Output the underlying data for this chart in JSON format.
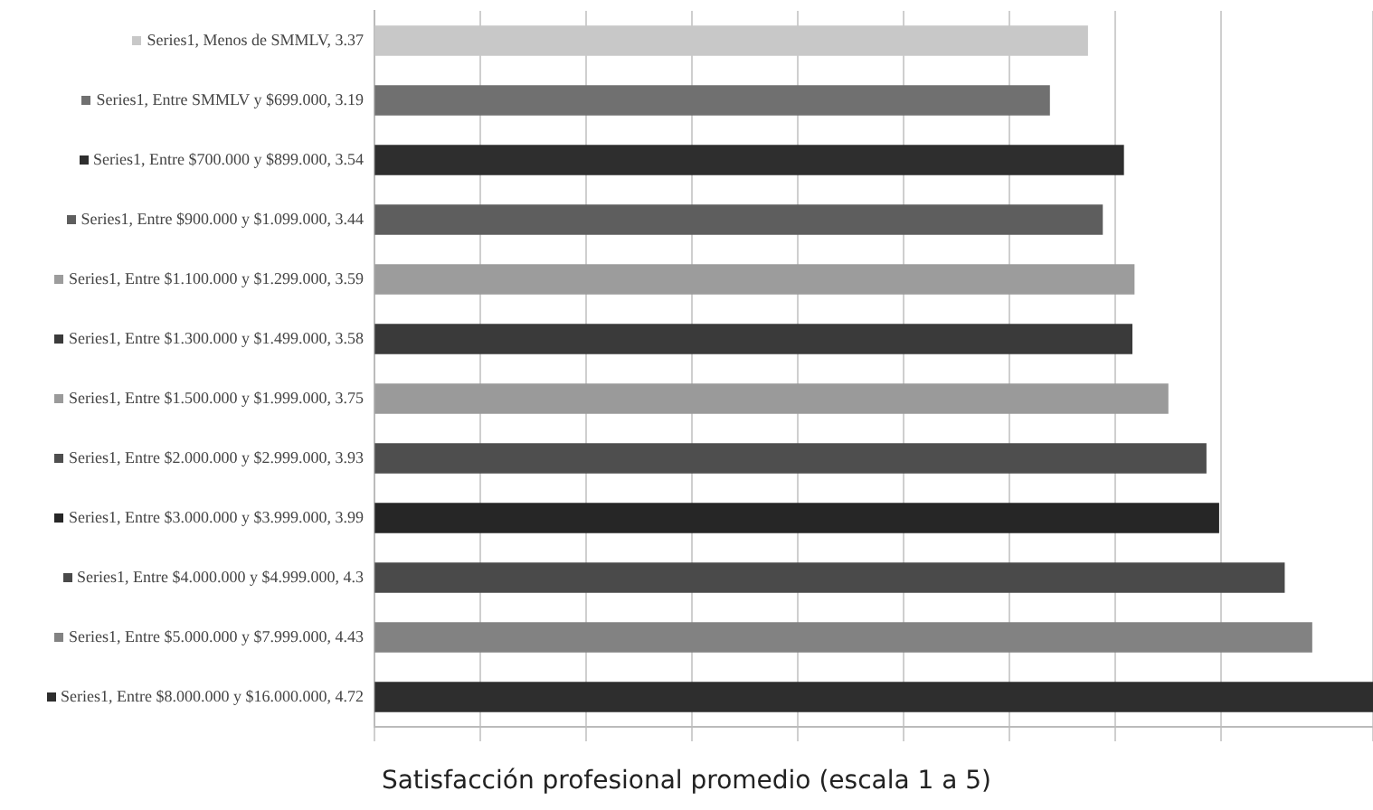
{
  "chart_data": {
    "type": "bar",
    "orientation": "horizontal",
    "xlabel": "Satisfacción profesional promedio (escala 1 a 5)",
    "categories": [
      null,
      null,
      null,
      null,
      null,
      null,
      null,
      null,
      null,
      null,
      null,
      null
    ],
    "series": [
      {
        "values": [
          3.37,
          3.19,
          3.54,
          3.44,
          3.59,
          3.58,
          3.75,
          3.93,
          3.99,
          4.3,
          4.43,
          4.72
        ],
        "colors": [
          "#c8c8c8",
          "#707070",
          "#2e2e2e",
          "#5e5e5e",
          "#9c9c9c",
          "#3a3a3a",
          "#9a9a9a",
          "#4e4e4e",
          "#262626",
          "#4a4a4a",
          "#828282",
          "#2e2e2e"
        ],
        "value_labels": [
          "Series1, Menos de SMMLV, 3.37",
          "Series1, Entre SMMLV y $699.000, 3.19",
          "Series1, Entre $700.000 y $899.000, 3.54",
          "Series1, Entre $900.000 y $1.099.000, 3.44",
          "Series1, Entre $1.100.000 y $1.299.000, 3.59",
          "Series1, Entre $1.300.000 y $1.499.000, 3.58",
          "Series1, Entre $1.500.000 y $1.999.000, 3.75",
          "Series1, Entre $2.000.000 y $2.999.000, 3.93",
          "Series1, Entre $3.000.000 y $3.999.000, 3.99",
          "Series1, Entre $4.000.000 y $4.999.000, 4.3",
          "Series1, Entre $5.000.000 y $7.999.000, 4.43",
          "Series1, Entre $8.000.000 y $16.000.000, 4.72"
        ]
      }
    ],
    "grid": "x",
    "legend": false
  }
}
